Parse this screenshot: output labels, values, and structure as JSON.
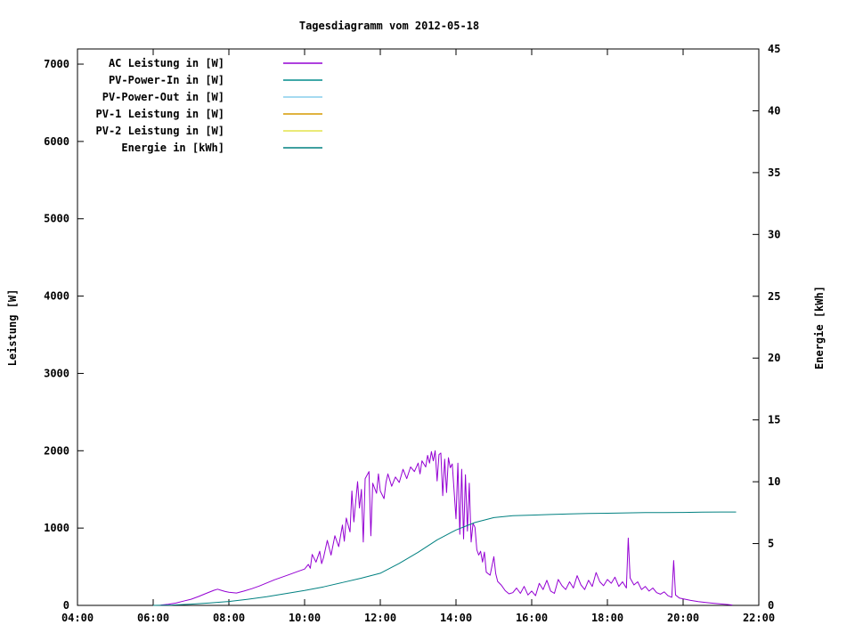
{
  "chart_data": {
    "type": "line",
    "title": "Tagesdiagramm vom 2012-05-18",
    "ylabel_left": "Leistung [W]",
    "ylabel_right": "Energie [kWh]",
    "grid": false,
    "legend_position": "top-left-inside",
    "x_axis": {
      "min": 4,
      "max": 22,
      "tick_values": [
        4,
        6,
        8,
        10,
        12,
        14,
        16,
        18,
        20,
        22
      ],
      "tick_labels": [
        "04:00",
        "06:00",
        "08:00",
        "10:00",
        "12:00",
        "14:00",
        "16:00",
        "18:00",
        "20:00",
        "22:00"
      ]
    },
    "y_left": {
      "min": 0,
      "max": 7196,
      "ticks": [
        0,
        1000,
        2000,
        3000,
        4000,
        5000,
        6000,
        7000
      ]
    },
    "y_right": {
      "min": 0,
      "max": 45,
      "ticks": [
        0,
        5,
        10,
        15,
        20,
        25,
        30,
        35,
        40,
        45
      ]
    },
    "series": [
      {
        "name": "ac-leistung",
        "label": "AC Leistung in [W]",
        "color": "#9400d3",
        "axis": "left",
        "points": [
          [
            6.2,
            5
          ],
          [
            6.4,
            15
          ],
          [
            6.6,
            30
          ],
          [
            6.8,
            55
          ],
          [
            7.0,
            80
          ],
          [
            7.2,
            115
          ],
          [
            7.4,
            155
          ],
          [
            7.6,
            195
          ],
          [
            7.7,
            210
          ],
          [
            7.8,
            195
          ],
          [
            7.9,
            180
          ],
          [
            8.0,
            170
          ],
          [
            8.2,
            160
          ],
          [
            8.4,
            185
          ],
          [
            8.6,
            215
          ],
          [
            8.8,
            250
          ],
          [
            9.0,
            290
          ],
          [
            9.2,
            330
          ],
          [
            9.4,
            365
          ],
          [
            9.6,
            400
          ],
          [
            9.8,
            435
          ],
          [
            10.0,
            470
          ],
          [
            10.1,
            530
          ],
          [
            10.15,
            480
          ],
          [
            10.2,
            660
          ],
          [
            10.3,
            560
          ],
          [
            10.4,
            700
          ],
          [
            10.45,
            540
          ],
          [
            10.5,
            620
          ],
          [
            10.6,
            840
          ],
          [
            10.7,
            650
          ],
          [
            10.8,
            900
          ],
          [
            10.9,
            760
          ],
          [
            11.0,
            1040
          ],
          [
            11.05,
            830
          ],
          [
            11.1,
            1130
          ],
          [
            11.2,
            950
          ],
          [
            11.25,
            1480
          ],
          [
            11.3,
            1080
          ],
          [
            11.4,
            1600
          ],
          [
            11.45,
            1260
          ],
          [
            11.5,
            1500
          ],
          [
            11.55,
            820
          ],
          [
            11.6,
            1640
          ],
          [
            11.7,
            1730
          ],
          [
            11.75,
            900
          ],
          [
            11.8,
            1580
          ],
          [
            11.9,
            1450
          ],
          [
            11.95,
            1700
          ],
          [
            12.0,
            1480
          ],
          [
            12.1,
            1380
          ],
          [
            12.15,
            1590
          ],
          [
            12.2,
            1700
          ],
          [
            12.3,
            1540
          ],
          [
            12.4,
            1660
          ],
          [
            12.5,
            1590
          ],
          [
            12.6,
            1760
          ],
          [
            12.7,
            1640
          ],
          [
            12.8,
            1790
          ],
          [
            12.9,
            1730
          ],
          [
            13.0,
            1840
          ],
          [
            13.05,
            1700
          ],
          [
            13.1,
            1870
          ],
          [
            13.2,
            1790
          ],
          [
            13.25,
            1940
          ],
          [
            13.3,
            1840
          ],
          [
            13.35,
            1990
          ],
          [
            13.4,
            1870
          ],
          [
            13.45,
            2000
          ],
          [
            13.5,
            1610
          ],
          [
            13.55,
            1950
          ],
          [
            13.6,
            1970
          ],
          [
            13.65,
            1420
          ],
          [
            13.7,
            1890
          ],
          [
            13.75,
            1460
          ],
          [
            13.8,
            1910
          ],
          [
            13.85,
            1780
          ],
          [
            13.9,
            1830
          ],
          [
            14.0,
            1120
          ],
          [
            14.05,
            1840
          ],
          [
            14.1,
            920
          ],
          [
            14.15,
            1760
          ],
          [
            14.2,
            860
          ],
          [
            14.25,
            1690
          ],
          [
            14.3,
            960
          ],
          [
            14.35,
            1580
          ],
          [
            14.4,
            820
          ],
          [
            14.45,
            1060
          ],
          [
            14.5,
            1010
          ],
          [
            14.55,
            720
          ],
          [
            14.6,
            650
          ],
          [
            14.65,
            700
          ],
          [
            14.7,
            560
          ],
          [
            14.75,
            690
          ],
          [
            14.8,
            430
          ],
          [
            14.9,
            390
          ],
          [
            15.0,
            630
          ],
          [
            15.05,
            410
          ],
          [
            15.1,
            310
          ],
          [
            15.2,
            260
          ],
          [
            15.3,
            190
          ],
          [
            15.4,
            150
          ],
          [
            15.5,
            165
          ],
          [
            15.6,
            225
          ],
          [
            15.7,
            155
          ],
          [
            15.8,
            245
          ],
          [
            15.9,
            135
          ],
          [
            16.0,
            185
          ],
          [
            16.1,
            125
          ],
          [
            16.2,
            285
          ],
          [
            16.3,
            205
          ],
          [
            16.4,
            325
          ],
          [
            16.5,
            185
          ],
          [
            16.6,
            155
          ],
          [
            16.7,
            335
          ],
          [
            16.8,
            255
          ],
          [
            16.9,
            205
          ],
          [
            17.0,
            305
          ],
          [
            17.1,
            225
          ],
          [
            17.2,
            385
          ],
          [
            17.3,
            265
          ],
          [
            17.4,
            205
          ],
          [
            17.5,
            325
          ],
          [
            17.6,
            245
          ],
          [
            17.7,
            425
          ],
          [
            17.8,
            305
          ],
          [
            17.9,
            255
          ],
          [
            18.0,
            335
          ],
          [
            18.1,
            285
          ],
          [
            18.2,
            365
          ],
          [
            18.3,
            245
          ],
          [
            18.4,
            305
          ],
          [
            18.5,
            225
          ],
          [
            18.55,
            870
          ],
          [
            18.6,
            355
          ],
          [
            18.7,
            265
          ],
          [
            18.8,
            305
          ],
          [
            18.9,
            205
          ],
          [
            19.0,
            245
          ],
          [
            19.1,
            185
          ],
          [
            19.2,
            225
          ],
          [
            19.3,
            165
          ],
          [
            19.4,
            145
          ],
          [
            19.5,
            175
          ],
          [
            19.6,
            125
          ],
          [
            19.7,
            105
          ],
          [
            19.75,
            580
          ],
          [
            19.8,
            135
          ],
          [
            19.9,
            95
          ],
          [
            20.0,
            85
          ],
          [
            20.2,
            65
          ],
          [
            20.4,
            50
          ],
          [
            20.6,
            38
          ],
          [
            20.8,
            28
          ],
          [
            21.0,
            18
          ],
          [
            21.2,
            10
          ],
          [
            21.3,
            5
          ]
        ]
      },
      {
        "name": "pv-power-in",
        "label": "PV-Power-In in [W]",
        "color": "#008b8b",
        "axis": "left",
        "points": []
      },
      {
        "name": "pv-power-out",
        "label": "PV-Power-Out in [W]",
        "color": "#87ceeb",
        "axis": "left",
        "points": []
      },
      {
        "name": "pv-1-leistung",
        "label": "PV-1 Leistung in [W]",
        "color": "#d69a00",
        "axis": "left",
        "points": []
      },
      {
        "name": "pv-2-leistung",
        "label": "PV-2 Leistung in [W]",
        "color": "#e4e44a",
        "axis": "left",
        "points": []
      },
      {
        "name": "energie",
        "label": "Energie in [kWh]",
        "color": "#008080",
        "axis": "right",
        "points": [
          [
            6.0,
            0
          ],
          [
            6.5,
            0.03
          ],
          [
            7.0,
            0.1
          ],
          [
            7.5,
            0.2
          ],
          [
            8.0,
            0.32
          ],
          [
            8.5,
            0.5
          ],
          [
            9.0,
            0.7
          ],
          [
            9.5,
            0.95
          ],
          [
            10.0,
            1.2
          ],
          [
            10.5,
            1.5
          ],
          [
            11.0,
            1.85
          ],
          [
            11.5,
            2.2
          ],
          [
            12.0,
            2.6
          ],
          [
            12.5,
            3.4
          ],
          [
            13.0,
            4.3
          ],
          [
            13.5,
            5.3
          ],
          [
            14.0,
            6.1
          ],
          [
            14.5,
            6.7
          ],
          [
            15.0,
            7.1
          ],
          [
            15.5,
            7.25
          ],
          [
            16.0,
            7.3
          ],
          [
            16.5,
            7.35
          ],
          [
            17.0,
            7.4
          ],
          [
            17.5,
            7.43
          ],
          [
            18.0,
            7.45
          ],
          [
            18.5,
            7.48
          ],
          [
            19.0,
            7.5
          ],
          [
            19.5,
            7.51
          ],
          [
            20.0,
            7.52
          ],
          [
            20.5,
            7.54
          ],
          [
            21.0,
            7.55
          ],
          [
            21.4,
            7.55
          ]
        ]
      }
    ]
  }
}
